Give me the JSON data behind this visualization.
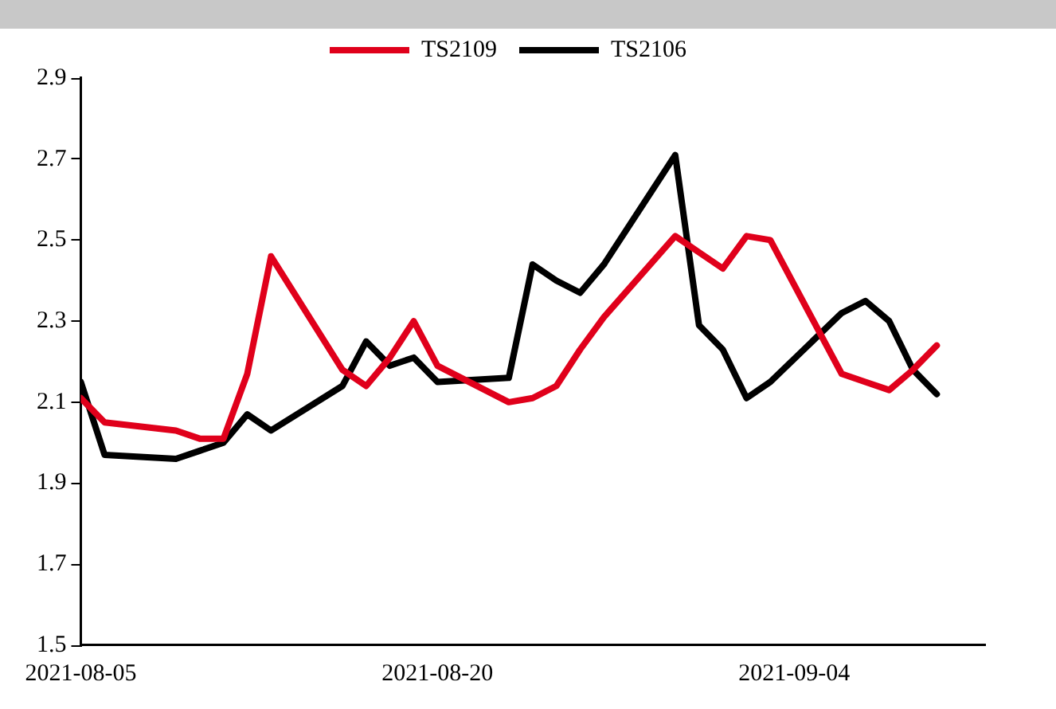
{
  "chart_data": {
    "type": "line",
    "x": [
      "2021-08-05",
      "2021-08-06",
      "2021-08-09",
      "2021-08-10",
      "2021-08-11",
      "2021-08-12",
      "2021-08-13",
      "2021-08-16",
      "2021-08-17",
      "2021-08-18",
      "2021-08-19",
      "2021-08-20",
      "2021-08-23",
      "2021-08-24",
      "2021-08-25",
      "2021-08-26",
      "2021-08-27",
      "2021-08-30",
      "2021-08-31",
      "2021-09-01",
      "2021-09-02",
      "2021-09-03",
      "2021-09-06",
      "2021-09-07",
      "2021-09-08",
      "2021-09-09",
      "2021-09-10"
    ],
    "series": [
      {
        "name": "TS2109",
        "color": "#e0001b",
        "values": [
          2.11,
          2.05,
          2.03,
          2.01,
          2.01,
          2.17,
          2.46,
          2.18,
          2.14,
          2.21,
          2.3,
          2.19,
          2.1,
          2.11,
          2.14,
          2.23,
          2.31,
          2.51,
          2.47,
          2.43,
          2.51,
          2.5,
          2.17,
          2.15,
          2.13,
          2.18,
          2.24
        ]
      },
      {
        "name": "TS2106",
        "color": "#000000",
        "values": [
          2.15,
          1.97,
          1.96,
          1.98,
          2.0,
          2.07,
          2.03,
          2.14,
          2.25,
          2.19,
          2.21,
          2.15,
          2.16,
          2.44,
          2.4,
          2.37,
          2.44,
          2.71,
          2.29,
          2.23,
          2.11,
          2.15,
          2.32,
          2.35,
          2.3,
          2.18,
          2.12
        ]
      }
    ],
    "xlim": [
      "2021-08-05",
      "2021-09-12"
    ],
    "xticks": [
      "2021-08-05",
      "2021-08-20",
      "2021-09-04"
    ],
    "ylim": [
      1.5,
      2.9
    ],
    "yticks": [
      {
        "value": 1.5,
        "label": "1.5"
      },
      {
        "value": 1.7,
        "label": "1.7"
      },
      {
        "value": 1.9,
        "label": "1.9"
      },
      {
        "value": 2.1,
        "label": "2.1"
      },
      {
        "value": 2.3,
        "label": "2.3"
      },
      {
        "value": 2.5,
        "label": "2.5"
      },
      {
        "value": 2.7,
        "label": "2.7"
      },
      {
        "value": 2.9,
        "label": "2.9"
      }
    ],
    "grid": false,
    "legend": "top",
    "marker": "none",
    "line_style": "solid"
  }
}
